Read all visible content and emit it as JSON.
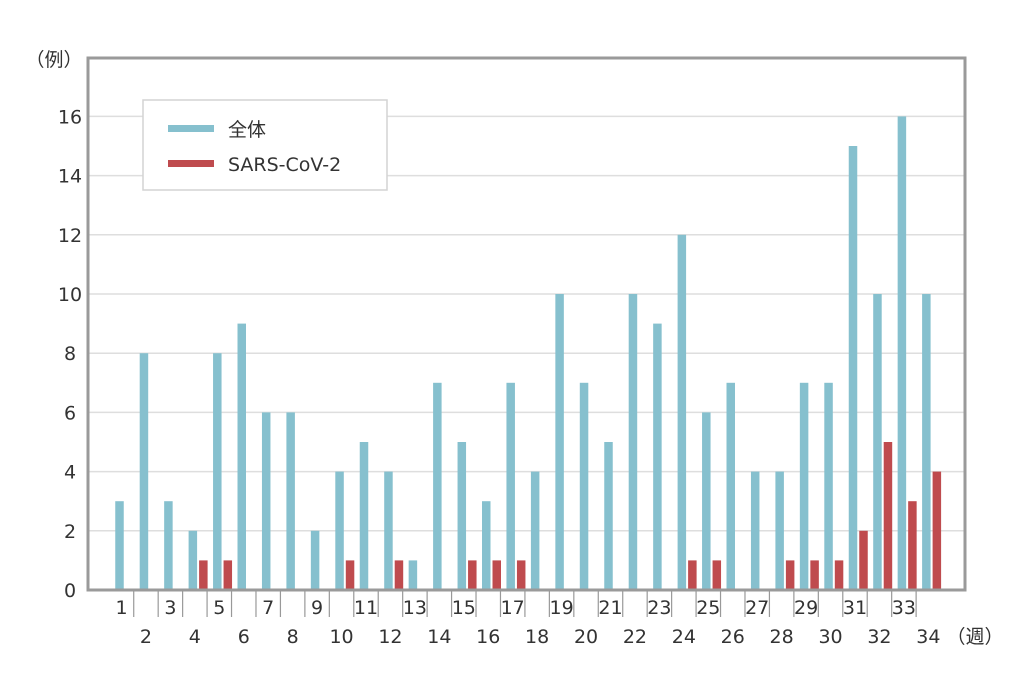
{
  "chart_data": {
    "type": "bar",
    "y_unit_label": "（例）",
    "x_unit_label": "（週）",
    "ylim": [
      0,
      18
    ],
    "yticks": [
      0,
      2,
      4,
      6,
      8,
      10,
      12,
      14,
      16
    ],
    "grid": true,
    "legend_position": "top-left",
    "categories": [
      "1",
      "2",
      "3",
      "4",
      "5",
      "6",
      "7",
      "8",
      "9",
      "10",
      "11",
      "12",
      "13",
      "14",
      "15",
      "16",
      "17",
      "18",
      "19",
      "20",
      "21",
      "22",
      "23",
      "24",
      "25",
      "26",
      "27",
      "28",
      "29",
      "30",
      "31",
      "32",
      "33",
      "34"
    ],
    "series": [
      {
        "name": "全体",
        "color": "#86c0ce",
        "values": [
          3,
          8,
          3,
          2,
          8,
          9,
          6,
          6,
          2,
          4,
          5,
          4,
          1,
          7,
          5,
          3,
          7,
          4,
          10,
          7,
          5,
          10,
          9,
          12,
          6,
          7,
          4,
          4,
          7,
          7,
          15,
          10,
          16,
          10
        ]
      },
      {
        "name": "SARS-CoV-2",
        "color": "#bf4b4e",
        "values": [
          0,
          0,
          0,
          1,
          1,
          0,
          0,
          0,
          0,
          1,
          0,
          1,
          0,
          0,
          1,
          1,
          1,
          0,
          0,
          0,
          0,
          0,
          0,
          1,
          1,
          0,
          0,
          1,
          1,
          1,
          2,
          5,
          3,
          4
        ]
      }
    ]
  }
}
